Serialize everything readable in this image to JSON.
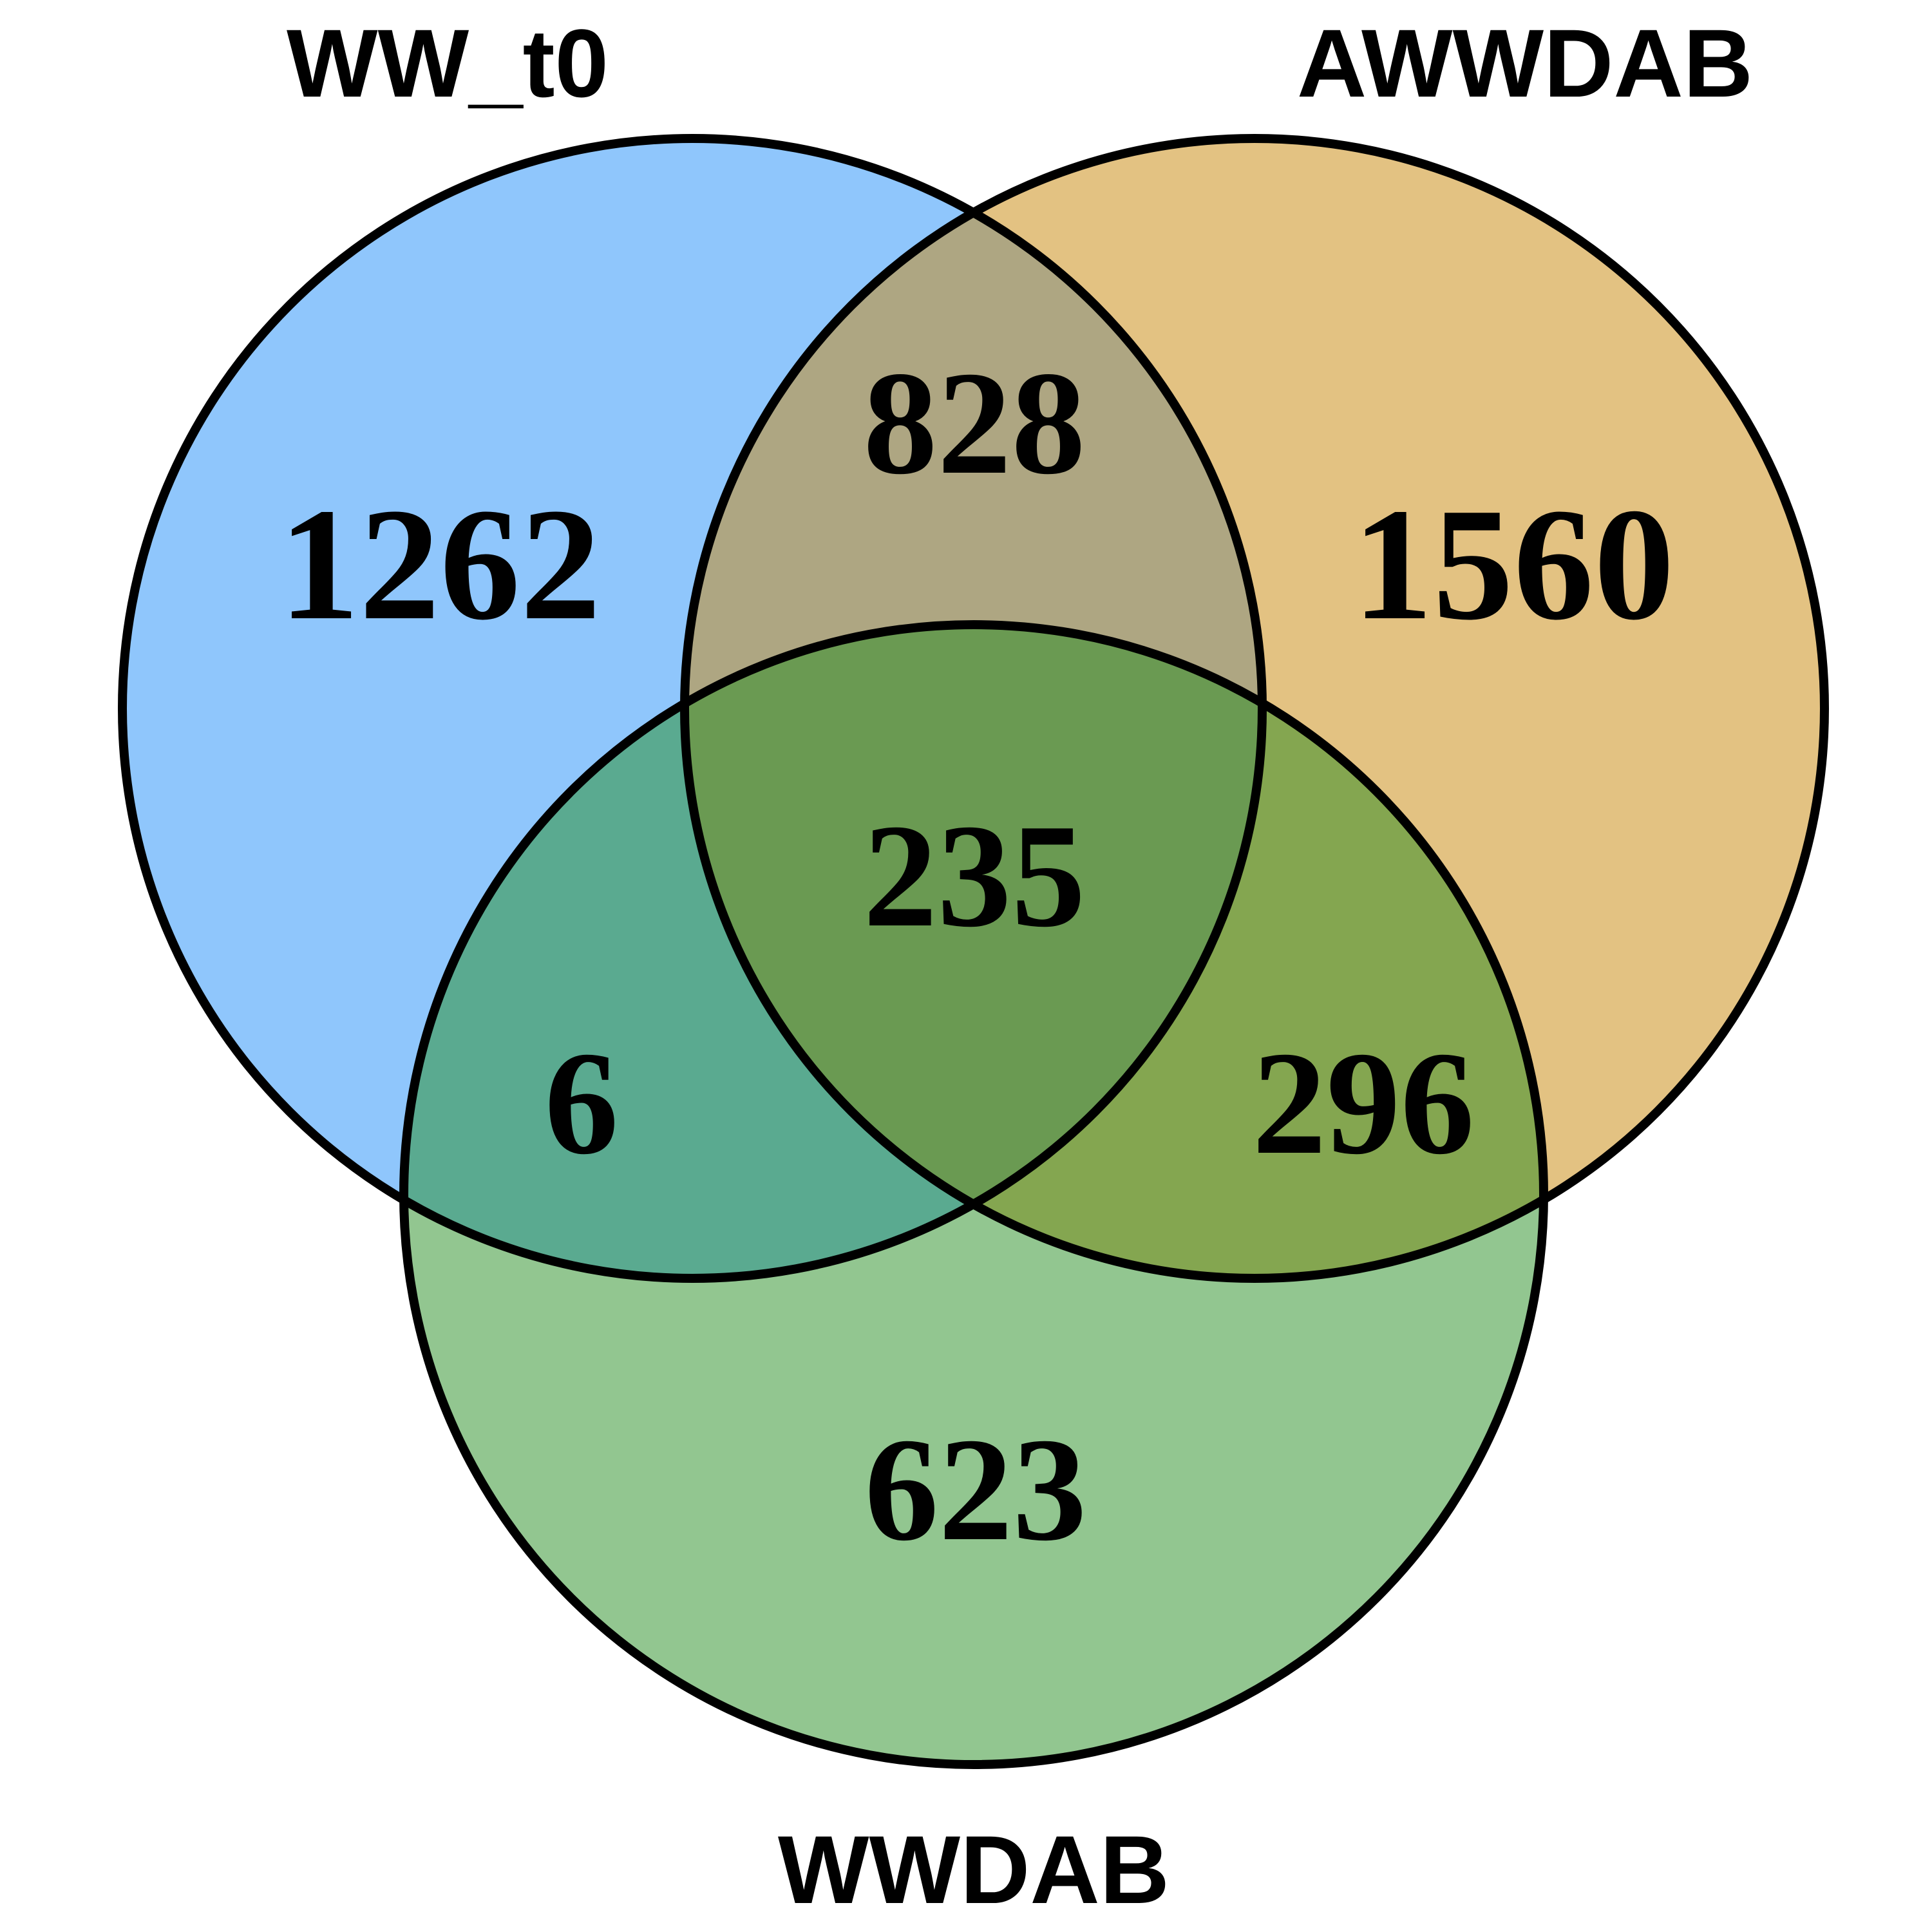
{
  "sets": [
    {
      "id": "A",
      "label": "WW_t0",
      "color": "#8fc6fc"
    },
    {
      "id": "B",
      "label": "AWWDAB",
      "color": "#e3c282"
    },
    {
      "id": "C",
      "label": "WWDAB",
      "color": "#92c690"
    }
  ],
  "regions": {
    "a_only": "1262",
    "b_only": "1560",
    "c_only": "623",
    "ab": "828",
    "ac": "6",
    "bc": "296",
    "abc": "235"
  },
  "overlap_colors": {
    "ab": "#aea682",
    "ac": "#5aaa90",
    "bc": "#84a650",
    "abc": "#6a9a52"
  }
}
